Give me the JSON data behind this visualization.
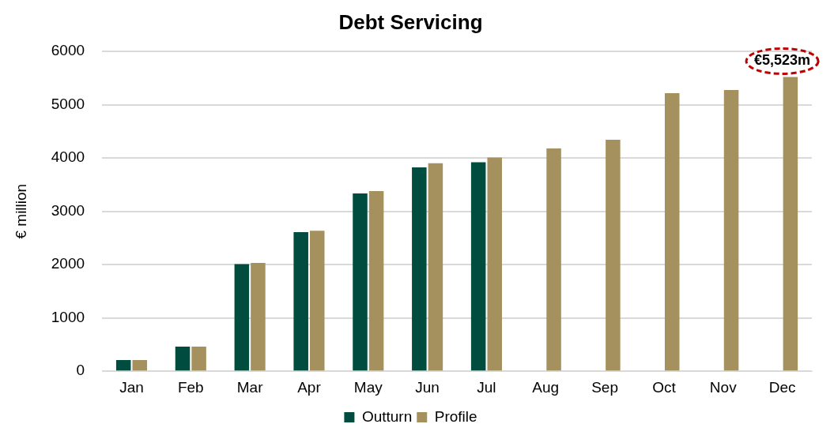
{
  "chart_data": {
    "type": "bar",
    "title": "Debt Servicing",
    "ylabel": "€ million",
    "categories": [
      "Jan",
      "Feb",
      "Mar",
      "Apr",
      "May",
      "Jun",
      "Jul",
      "Aug",
      "Sep",
      "Oct",
      "Nov",
      "Dec"
    ],
    "series": [
      {
        "name": "Outturn",
        "color": "#004d40",
        "values": [
          210,
          464,
          2011,
          2609,
          3337,
          3827,
          3920,
          null,
          null,
          null,
          null,
          null
        ]
      },
      {
        "name": "Profile",
        "color": "#a5915e",
        "values": [
          210,
          464,
          2032,
          2636,
          3380,
          3904,
          4011,
          4182,
          4342,
          5219,
          5278,
          5523
        ]
      }
    ],
    "ylim": [
      0,
      6000
    ],
    "yticks": [
      0,
      1000,
      2000,
      3000,
      4000,
      5000,
      6000
    ],
    "grid": "y",
    "legend": "bottom",
    "annotations": [
      {
        "text": "€5,523m",
        "x": "Dec",
        "y": 5523
      }
    ]
  }
}
